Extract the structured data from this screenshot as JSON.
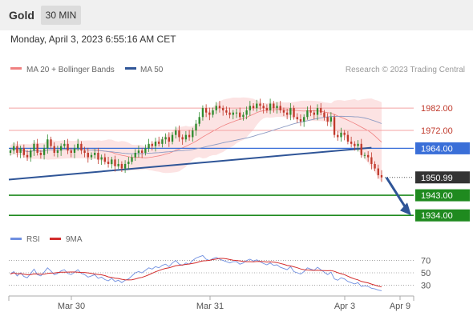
{
  "header": {
    "title": "Gold",
    "timeframe": "30 MIN"
  },
  "datetime": "Monday, April 3, 2023 6:55:16 AM CET",
  "legend": {
    "bb_label": "MA 20 + Bollinger Bands",
    "ma50_label": "MA 50",
    "credit": "Research © 2023 Trading Central"
  },
  "rsi_legend": {
    "rsi_label": "RSI",
    "ma_label": "9MA"
  },
  "colors": {
    "bb": "#f08080",
    "bb_fill": "#fcdede",
    "ma50": "#2f5597",
    "bull": "#2e8b2e",
    "bear": "#c0392b",
    "support": "#1f8a1f",
    "resistance": "#f4a3a3",
    "pivot": "#3a6fd8",
    "current": "#333333",
    "rsi": "#6f8fe0",
    "rsi_ma": "#d22b2b"
  },
  "chart_data": {
    "type": "candlestick",
    "ylim": [
      1928,
      1996
    ],
    "x_ticks": [
      "Mar 30",
      "Mar 31",
      "Apr 3",
      "Apr 9"
    ],
    "levels": [
      {
        "label": "1982.00",
        "value": 1982,
        "kind": "resistance"
      },
      {
        "label": "1972.00",
        "value": 1972,
        "kind": "resistance"
      },
      {
        "label": "1964.00",
        "value": 1964,
        "kind": "pivot"
      },
      {
        "label": "1950.99",
        "value": 1950.99,
        "kind": "current"
      },
      {
        "label": "1943.00",
        "value": 1943,
        "kind": "support"
      },
      {
        "label": "1934.00",
        "value": 1934,
        "kind": "support"
      }
    ],
    "closes": [
      1963,
      1965,
      1962,
      1964,
      1961,
      1960,
      1963,
      1966,
      1962,
      1961,
      1964,
      1968,
      1965,
      1962,
      1963,
      1965,
      1966,
      1963,
      1962,
      1964,
      1966,
      1963,
      1962,
      1960,
      1961,
      1962,
      1959,
      1960,
      1958,
      1957,
      1959,
      1956,
      1957,
      1955,
      1957,
      1958,
      1960,
      1962,
      1963,
      1962,
      1964,
      1966,
      1965,
      1967,
      1966,
      1968,
      1969,
      1967,
      1970,
      1972,
      1969,
      1968,
      1970,
      1969,
      1972,
      1975,
      1978,
      1982,
      1980,
      1979,
      1981,
      1983,
      1982,
      1981,
      1980,
      1979,
      1980,
      1980,
      1978,
      1979,
      1981,
      1983,
      1982,
      1984,
      1983,
      1982,
      1981,
      1984,
      1982,
      1983,
      1981,
      1980,
      1979,
      1982,
      1978,
      1977,
      1976,
      1978,
      1981,
      1980,
      1979,
      1982,
      1980,
      1978,
      1976,
      1978,
      1970,
      1969,
      1971,
      1970,
      1967,
      1966,
      1965,
      1966,
      1961,
      1961,
      1960,
      1957,
      1955,
      1952,
      1950.99
    ],
    "rsi_ticks": [
      70,
      50,
      30
    ],
    "rsi": [
      48,
      52,
      45,
      50,
      44,
      42,
      49,
      56,
      47,
      45,
      51,
      58,
      53,
      47,
      49,
      53,
      55,
      49,
      47,
      51,
      55,
      49,
      47,
      43,
      45,
      47,
      41,
      43,
      39,
      37,
      41,
      36,
      38,
      34,
      38,
      40,
      45,
      50,
      52,
      50,
      54,
      58,
      56,
      60,
      58,
      62,
      64,
      60,
      66,
      70,
      64,
      62,
      66,
      64,
      70,
      74,
      76,
      78,
      72,
      70,
      73,
      75,
      72,
      70,
      68,
      66,
      68,
      68,
      64,
      66,
      70,
      72,
      69,
      71,
      68,
      65,
      63,
      66,
      62,
      63,
      59,
      57,
      55,
      60,
      52,
      50,
      48,
      52,
      58,
      56,
      54,
      59,
      55,
      51,
      47,
      51,
      40,
      38,
      42,
      40,
      36,
      34,
      32,
      34,
      28,
      29,
      28,
      25,
      24,
      22,
      21
    ]
  }
}
